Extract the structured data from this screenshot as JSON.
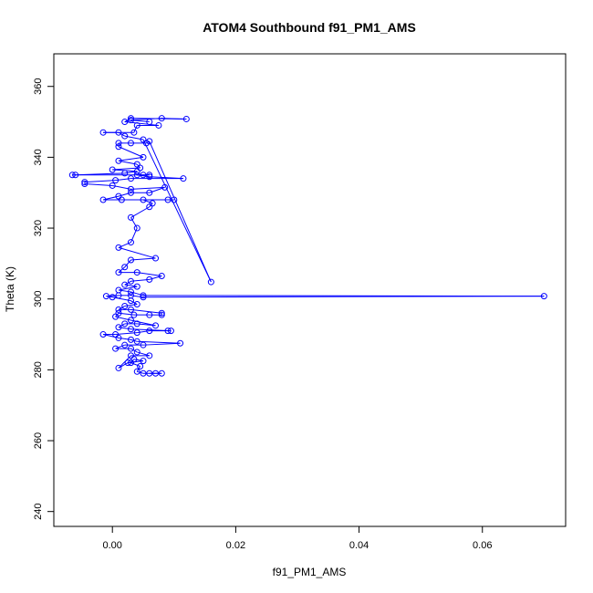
{
  "chart_data": {
    "type": "scatter",
    "title": "ATOM4 Southbound f91_PM1_AMS",
    "xlabel": "f91_PM1_AMS",
    "ylabel": "Theta (K)",
    "xlim": [
      -0.0095,
      0.0735
    ],
    "ylim": [
      235.8,
      369.2
    ],
    "xticks": [
      0.0,
      0.02,
      0.04,
      0.06
    ],
    "xtick_labels": [
      "0.00",
      "0.02",
      "0.04",
      "0.06"
    ],
    "yticks": [
      240,
      260,
      280,
      300,
      320,
      340,
      360
    ],
    "ytick_labels": [
      "240",
      "260",
      "280",
      "300",
      "320",
      "340",
      "360"
    ],
    "grid": false,
    "series": [
      {
        "color": "#0000ff",
        "marker": "open-circle",
        "connected": true,
        "points": [
          [
            0.006,
            279.0
          ],
          [
            0.007,
            279.0
          ],
          [
            0.008,
            279.0
          ],
          [
            0.005,
            279.0
          ],
          [
            0.004,
            279.5
          ],
          [
            0.0045,
            281.0
          ],
          [
            0.003,
            282.0
          ],
          [
            0.0035,
            283.0
          ],
          [
            0.005,
            282.5
          ],
          [
            0.0025,
            282.0
          ],
          [
            0.001,
            280.5
          ],
          [
            0.003,
            284.0
          ],
          [
            0.006,
            284.0
          ],
          [
            0.004,
            285.0
          ],
          [
            0.003,
            286.0
          ],
          [
            0.0005,
            286.0
          ],
          [
            0.002,
            287.0
          ],
          [
            0.005,
            287.0
          ],
          [
            0.011,
            287.5
          ],
          [
            0.004,
            288.0
          ],
          [
            0.003,
            288.5
          ],
          [
            0.001,
            289.0
          ],
          [
            -0.0015,
            290.0
          ],
          [
            0.0005,
            290.0
          ],
          [
            0.004,
            290.5
          ],
          [
            0.006,
            291.0
          ],
          [
            0.009,
            291.0
          ],
          [
            0.0095,
            291.0
          ],
          [
            0.003,
            291.5
          ],
          [
            0.001,
            292.0
          ],
          [
            0.002,
            293.0
          ],
          [
            0.004,
            293.0
          ],
          [
            0.007,
            292.5
          ],
          [
            0.003,
            294.0
          ],
          [
            0.0005,
            295.0
          ],
          [
            0.001,
            296.0
          ],
          [
            0.0035,
            295.5
          ],
          [
            0.006,
            295.5
          ],
          [
            0.008,
            295.5
          ],
          [
            0.008,
            296.0
          ],
          [
            0.003,
            297.0
          ],
          [
            0.001,
            297.0
          ],
          [
            0.002,
            298.0
          ],
          [
            0.004,
            298.5
          ],
          [
            0.003,
            299.5
          ],
          [
            0.0,
            300.5
          ],
          [
            -0.001,
            300.8
          ],
          [
            0.001,
            301.0
          ],
          [
            0.003,
            301.0
          ],
          [
            0.005,
            300.5
          ],
          [
            0.07,
            300.8
          ],
          [
            0.005,
            301.0
          ],
          [
            0.003,
            302.0
          ],
          [
            0.001,
            302.5
          ],
          [
            0.004,
            303.5
          ],
          [
            0.002,
            304.0
          ],
          [
            0.003,
            305.0
          ],
          [
            0.006,
            305.5
          ],
          [
            0.008,
            306.5
          ],
          [
            0.004,
            307.5
          ],
          [
            0.001,
            307.5
          ],
          [
            0.002,
            309.0
          ],
          [
            0.003,
            311.0
          ],
          [
            0.007,
            311.5
          ],
          [
            0.001,
            314.5
          ],
          [
            0.003,
            316.0
          ],
          [
            0.004,
            320.0
          ],
          [
            0.003,
            323.0
          ],
          [
            0.006,
            326.0
          ],
          [
            0.0065,
            327.0
          ],
          [
            0.005,
            328.0
          ],
          [
            0.009,
            328.0
          ],
          [
            0.01,
            328.0
          ],
          [
            0.0015,
            328.0
          ],
          [
            -0.0015,
            328.0
          ],
          [
            0.001,
            329.0
          ],
          [
            0.003,
            330.0
          ],
          [
            0.006,
            330.0
          ],
          [
            0.0085,
            331.5
          ],
          [
            0.003,
            331.0
          ],
          [
            0.0,
            332.0
          ],
          [
            -0.0045,
            332.5
          ],
          [
            -0.0045,
            333.0
          ],
          [
            0.0005,
            333.5
          ],
          [
            0.003,
            334.0
          ],
          [
            0.0115,
            334.0
          ],
          [
            0.006,
            334.5
          ],
          [
            0.004,
            335.0
          ],
          [
            0.005,
            335.0
          ],
          [
            0.006,
            335.0
          ],
          [
            -0.0065,
            335.0
          ],
          [
            -0.006,
            335.0
          ],
          [
            0.002,
            335.5
          ],
          [
            0.004,
            336.0
          ],
          [
            0.0,
            336.5
          ],
          [
            0.0045,
            337.0
          ],
          [
            0.004,
            338.0
          ],
          [
            0.001,
            339.0
          ],
          [
            0.005,
            340.0
          ],
          [
            0.001,
            343.0
          ],
          [
            0.001,
            344.0
          ],
          [
            0.003,
            344.0
          ],
          [
            0.0055,
            344.0
          ],
          [
            0.006,
            344.5
          ],
          [
            0.016,
            304.8
          ],
          [
            0.005,
            345.0
          ],
          [
            0.002,
            346.0
          ],
          [
            0.001,
            347.0
          ],
          [
            -0.0015,
            347.0
          ],
          [
            0.0035,
            347.0
          ],
          [
            0.004,
            349.0
          ],
          [
            0.0075,
            349.0
          ],
          [
            0.002,
            350.0
          ],
          [
            0.003,
            351.0
          ],
          [
            0.012,
            350.8
          ],
          [
            0.008,
            351.0
          ],
          [
            0.003,
            350.5
          ],
          [
            0.006,
            350.0
          ]
        ]
      }
    ]
  }
}
